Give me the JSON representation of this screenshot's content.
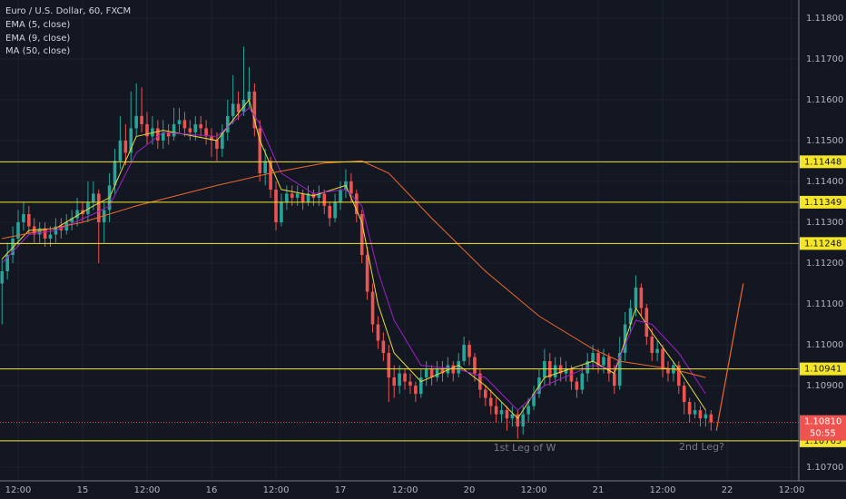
{
  "chart_data": {
    "type": "candlestick",
    "title": "Euro / U.S. Dollar, 60, FXCM",
    "up_color": "#26a69a",
    "down_color": "#ef5350",
    "grid": true,
    "xlim": [
      -0.38,
      148.34
    ],
    "ylim": [
      1.10667,
      1.11844
    ],
    "xticks": [
      {
        "value": 3,
        "label": "12:00"
      },
      {
        "value": 15,
        "label": "15"
      },
      {
        "value": 27,
        "label": "12:00"
      },
      {
        "value": 39,
        "label": "16"
      },
      {
        "value": 51,
        "label": "12:00"
      },
      {
        "value": 63,
        "label": "17"
      },
      {
        "value": 75,
        "label": "12:00"
      },
      {
        "value": 87,
        "label": "20"
      },
      {
        "value": 99,
        "label": "12:00"
      },
      {
        "value": 111,
        "label": "21"
      },
      {
        "value": 123,
        "label": "12:00"
      },
      {
        "value": 135,
        "label": "22"
      },
      {
        "value": 147,
        "label": "12:00"
      }
    ],
    "yticks": [
      {
        "value": 1.118,
        "label": "1.11800"
      },
      {
        "value": 1.117,
        "label": "1.11700"
      },
      {
        "value": 1.116,
        "label": "1.11600"
      },
      {
        "value": 1.115,
        "label": "1.11500"
      },
      {
        "value": 1.114,
        "label": "1.11400"
      },
      {
        "value": 1.113,
        "label": "1.11300"
      },
      {
        "value": 1.112,
        "label": "1.11200"
      },
      {
        "value": 1.111,
        "label": "1.11100"
      },
      {
        "value": 1.11,
        "label": "1.11000"
      },
      {
        "value": 1.109,
        "label": "1.10900"
      },
      {
        "value": 1.107,
        "label": "1.10700"
      }
    ],
    "candles": [
      [
        1.1115,
        1.1121,
        1.1105,
        1.1118
      ],
      [
        1.1118,
        1.1125,
        1.1116,
        1.1122
      ],
      [
        1.1122,
        1.1129,
        1.112,
        1.1126
      ],
      [
        1.1126,
        1.1133,
        1.1124,
        1.113
      ],
      [
        1.113,
        1.1135,
        1.1128,
        1.1132
      ],
      [
        1.1132,
        1.1134,
        1.1127,
        1.1129
      ],
      [
        1.1129,
        1.1131,
        1.1125,
        1.1127
      ],
      [
        1.1127,
        1.113,
        1.1125,
        1.11285
      ],
      [
        1.11285,
        1.113,
        1.1124,
        1.1126
      ],
      [
        1.1126,
        1.1129,
        1.1124,
        1.1127
      ],
      [
        1.1127,
        1.1131,
        1.1125,
        1.1129
      ],
      [
        1.1129,
        1.1131,
        1.1126,
        1.1128
      ],
      [
        1.1128,
        1.1132,
        1.1127,
        1.113
      ],
      [
        1.113,
        1.1133,
        1.1128,
        1.1131
      ],
      [
        1.1131,
        1.1136,
        1.1129,
        1.1133
      ],
      [
        1.1133,
        1.1135,
        1.113,
        1.1132
      ],
      [
        1.1132,
        1.114,
        1.113,
        1.1135
      ],
      [
        1.1135,
        1.114,
        1.1133,
        1.1137
      ],
      [
        1.1137,
        1.1138,
        1.112,
        1.113
      ],
      [
        1.113,
        1.1135,
        1.1125,
        1.1133
      ],
      [
        1.1133,
        1.1142,
        1.113,
        1.1139
      ],
      [
        1.1139,
        1.1148,
        1.1137,
        1.1145
      ],
      [
        1.1145,
        1.1156,
        1.1143,
        1.115
      ],
      [
        1.115,
        1.1154,
        1.1144,
        1.1147
      ],
      [
        1.1147,
        1.1162,
        1.1145,
        1.1153
      ],
      [
        1.1153,
        1.1164,
        1.1151,
        1.1156
      ],
      [
        1.1156,
        1.1163,
        1.1152,
        1.1154
      ],
      [
        1.1154,
        1.1157,
        1.1149,
        1.1151
      ],
      [
        1.1151,
        1.1156,
        1.1149,
        1.1153
      ],
      [
        1.1153,
        1.1155,
        1.1148,
        1.115
      ],
      [
        1.115,
        1.1155,
        1.1148,
        1.1152
      ],
      [
        1.1152,
        1.1154,
        1.1149,
        1.1151
      ],
      [
        1.1151,
        1.1158,
        1.115,
        1.1154
      ],
      [
        1.1154,
        1.1158,
        1.1152,
        1.1155
      ],
      [
        1.1155,
        1.1157,
        1.1151,
        1.1153
      ],
      [
        1.1153,
        1.1155,
        1.115,
        1.1152
      ],
      [
        1.1152,
        1.1156,
        1.115,
        1.1154
      ],
      [
        1.1154,
        1.1156,
        1.1151,
        1.1153
      ],
      [
        1.1153,
        1.1155,
        1.1149,
        1.1151
      ],
      [
        1.1151,
        1.1153,
        1.1146,
        1.115
      ],
      [
        1.115,
        1.1152,
        1.1145,
        1.1148
      ],
      [
        1.1148,
        1.1154,
        1.1146,
        1.1152
      ],
      [
        1.1152,
        1.116,
        1.115,
        1.1156
      ],
      [
        1.1156,
        1.1166,
        1.1154,
        1.1159
      ],
      [
        1.1159,
        1.1162,
        1.1155,
        1.1157
      ],
      [
        1.1157,
        1.1173,
        1.1156,
        1.116
      ],
      [
        1.116,
        1.1168,
        1.1158,
        1.1162
      ],
      [
        1.1162,
        1.1164,
        1.1151,
        1.1153
      ],
      [
        1.1153,
        1.1155,
        1.114,
        1.1142
      ],
      [
        1.1142,
        1.1148,
        1.1139,
        1.1145
      ],
      [
        1.1145,
        1.1146,
        1.1136,
        1.1138
      ],
      [
        1.1138,
        1.114,
        1.1128,
        1.113
      ],
      [
        1.113,
        1.1137,
        1.1129,
        1.1135
      ],
      [
        1.1135,
        1.1139,
        1.1133,
        1.1137
      ],
      [
        1.1137,
        1.1139,
        1.1134,
        1.1136
      ],
      [
        1.1136,
        1.1139,
        1.1134,
        1.1137
      ],
      [
        1.1137,
        1.1138,
        1.1133,
        1.1135
      ],
      [
        1.1135,
        1.1139,
        1.1134,
        1.1137
      ],
      [
        1.1137,
        1.1138,
        1.1134,
        1.1136
      ],
      [
        1.1136,
        1.1139,
        1.1134,
        1.1137
      ],
      [
        1.1137,
        1.1138,
        1.1132,
        1.1134
      ],
      [
        1.1134,
        1.1135,
        1.1129,
        1.1131
      ],
      [
        1.1131,
        1.1137,
        1.113,
        1.1135
      ],
      [
        1.1135,
        1.114,
        1.1133,
        1.1138
      ],
      [
        1.1138,
        1.1143,
        1.1136,
        1.114
      ],
      [
        1.114,
        1.1142,
        1.1135,
        1.1137
      ],
      [
        1.1137,
        1.1138,
        1.113,
        1.1132
      ],
      [
        1.1132,
        1.1133,
        1.112,
        1.1122
      ],
      [
        1.1122,
        1.1124,
        1.1111,
        1.1113
      ],
      [
        1.1113,
        1.1115,
        1.1103,
        1.1105
      ],
      [
        1.1105,
        1.1107,
        1.1099,
        1.1101
      ],
      [
        1.1101,
        1.1103,
        1.1096,
        1.1098
      ],
      [
        1.1098,
        1.11,
        1.1086,
        1.1092
      ],
      [
        1.1092,
        1.1095,
        1.1087,
        1.109
      ],
      [
        1.109,
        1.1095,
        1.1088,
        1.1093
      ],
      [
        1.1093,
        1.1094,
        1.1089,
        1.1091
      ],
      [
        1.1091,
        1.1093,
        1.1088,
        1.109
      ],
      [
        1.109,
        1.1091,
        1.1086,
        1.1088
      ],
      [
        1.1088,
        1.1094,
        1.1087,
        1.1092
      ],
      [
        1.1092,
        1.1096,
        1.109,
        1.1094
      ],
      [
        1.1094,
        1.1095,
        1.109,
        1.1092
      ],
      [
        1.1092,
        1.1096,
        1.1091,
        1.1094
      ],
      [
        1.1094,
        1.1096,
        1.1091,
        1.1093
      ],
      [
        1.1093,
        1.1097,
        1.1092,
        1.1095
      ],
      [
        1.1095,
        1.1096,
        1.1091,
        1.1093
      ],
      [
        1.1093,
        1.1098,
        1.1092,
        1.1096
      ],
      [
        1.1096,
        1.1102,
        1.1095,
        1.11
      ],
      [
        1.11,
        1.1101,
        1.1095,
        1.1097
      ],
      [
        1.1097,
        1.1098,
        1.1091,
        1.1093
      ],
      [
        1.1093,
        1.1094,
        1.1087,
        1.1089
      ],
      [
        1.1089,
        1.109,
        1.1085,
        1.1087
      ],
      [
        1.1087,
        1.1089,
        1.1083,
        1.1085
      ],
      [
        1.1085,
        1.1087,
        1.1081,
        1.1083
      ],
      [
        1.1083,
        1.1086,
        1.1081,
        1.1084
      ],
      [
        1.1084,
        1.1085,
        1.1079,
        1.1082
      ],
      [
        1.1082,
        1.1085,
        1.108,
        1.1083
      ],
      [
        1.1083,
        1.1084,
        1.1077,
        1.108
      ],
      [
        1.108,
        1.1085,
        1.1078,
        1.1083
      ],
      [
        1.1083,
        1.1087,
        1.1081,
        1.1085
      ],
      [
        1.1085,
        1.109,
        1.1084,
        1.1088
      ],
      [
        1.1088,
        1.1094,
        1.1087,
        1.1092
      ],
      [
        1.1092,
        1.1099,
        1.109,
        1.1096
      ],
      [
        1.1096,
        1.1098,
        1.109,
        1.1092
      ],
      [
        1.1092,
        1.1097,
        1.109,
        1.1095
      ],
      [
        1.1095,
        1.1097,
        1.1091,
        1.1093
      ],
      [
        1.1093,
        1.1096,
        1.1091,
        1.1094
      ],
      [
        1.1094,
        1.1095,
        1.1089,
        1.1091
      ],
      [
        1.1091,
        1.1092,
        1.1087,
        1.1089
      ],
      [
        1.1089,
        1.1095,
        1.1088,
        1.1093
      ],
      [
        1.1093,
        1.1098,
        1.1091,
        1.1096
      ],
      [
        1.1096,
        1.11,
        1.1094,
        1.1098
      ],
      [
        1.1098,
        1.1099,
        1.1093,
        1.1095
      ],
      [
        1.1095,
        1.1099,
        1.1093,
        1.1097
      ],
      [
        1.1097,
        1.1098,
        1.1091,
        1.1093
      ],
      [
        1.1093,
        1.1095,
        1.1088,
        1.109
      ],
      [
        1.109,
        1.1102,
        1.1089,
        1.1098
      ],
      [
        1.1098,
        1.1108,
        1.1096,
        1.1105
      ],
      [
        1.1105,
        1.1111,
        1.1103,
        1.1109
      ],
      [
        1.1109,
        1.1117,
        1.1107,
        1.1114
      ],
      [
        1.1114,
        1.1115,
        1.1107,
        1.1109
      ],
      [
        1.1109,
        1.111,
        1.11,
        1.1102
      ],
      [
        1.1102,
        1.1104,
        1.1096,
        1.1098
      ],
      [
        1.1098,
        1.1101,
        1.1096,
        1.1099
      ],
      [
        1.1099,
        1.11,
        1.1092,
        1.1094
      ],
      [
        1.1094,
        1.1096,
        1.1091,
        1.1093
      ],
      [
        1.1093,
        1.1096,
        1.1091,
        1.1095
      ],
      [
        1.1095,
        1.1096,
        1.1088,
        1.109
      ],
      [
        1.109,
        1.1091,
        1.1083,
        1.1086
      ],
      [
        1.1086,
        1.1087,
        1.1081,
        1.1083
      ],
      [
        1.1083,
        1.1086,
        1.1082,
        1.1084
      ],
      [
        1.1084,
        1.1085,
        1.108,
        1.1082
      ],
      [
        1.1082,
        1.1084,
        1.108,
        1.1083
      ],
      [
        1.1083,
        1.1084,
        1.1079,
        1.1081
      ]
    ],
    "series": [
      {
        "name": "EMA (5, close)",
        "color": "#e6d939",
        "x": [
          0,
          5,
          10,
          17,
          20,
          25,
          30,
          40,
          46,
          48,
          52,
          58,
          64,
          67,
          70,
          73,
          78,
          85,
          90,
          96,
          101,
          110,
          114,
          118,
          121,
          126,
          131
        ],
        "values": [
          1.1121,
          1.1128,
          1.11285,
          1.1134,
          1.1136,
          1.1151,
          1.11525,
          1.115,
          1.116,
          1.115,
          1.1138,
          1.11365,
          1.1139,
          1.113,
          1.111,
          1.1098,
          1.1091,
          1.1095,
          1.109,
          1.1082,
          1.1092,
          1.1096,
          1.1093,
          1.1109,
          1.1103,
          1.1094,
          1.1084
        ]
      },
      {
        "name": "EMA (9, close)",
        "color": "#a020c8",
        "x": [
          0,
          5,
          10,
          17,
          20,
          25,
          30,
          40,
          46,
          48,
          52,
          58,
          64,
          67,
          70,
          73,
          78,
          85,
          90,
          96,
          101,
          110,
          114,
          118,
          121,
          126,
          131
        ],
        "values": [
          1.112,
          1.1127,
          1.1128,
          1.1132,
          1.1134,
          1.1147,
          1.1152,
          1.1151,
          1.1158,
          1.1154,
          1.1142,
          1.1137,
          1.1138,
          1.1134,
          1.1118,
          1.1106,
          1.1095,
          1.1094,
          1.1092,
          1.1084,
          1.109,
          1.1095,
          1.1094,
          1.1106,
          1.1105,
          1.1098,
          1.1088
        ]
      },
      {
        "name": "MA (50, close)",
        "color": "#f0672c",
        "x": [
          0,
          15,
          25,
          40,
          50,
          60,
          67,
          72,
          80,
          90,
          100,
          110,
          115,
          120,
          125,
          131
        ],
        "values": [
          1.1126,
          1.113,
          1.1134,
          1.1139,
          1.1142,
          1.11445,
          1.1145,
          1.1142,
          1.1131,
          1.1118,
          1.1107,
          1.1099,
          1.1096,
          1.1095,
          1.1094,
          1.1092
        ]
      }
    ],
    "levels": [
      1.11448,
      1.11349,
      1.11248,
      1.10941,
      1.10765
    ],
    "level_color": "#f5e52a",
    "last_price": {
      "value": 1.1081,
      "label": "1.10810"
    },
    "countdown": "50:55",
    "projection": {
      "color": "#f0672c",
      "x": [
        133,
        138
      ],
      "values": [
        1.1079,
        1.1115
      ]
    },
    "annotations": [
      "1st Leg of W",
      "2nd Leg?"
    ]
  }
}
